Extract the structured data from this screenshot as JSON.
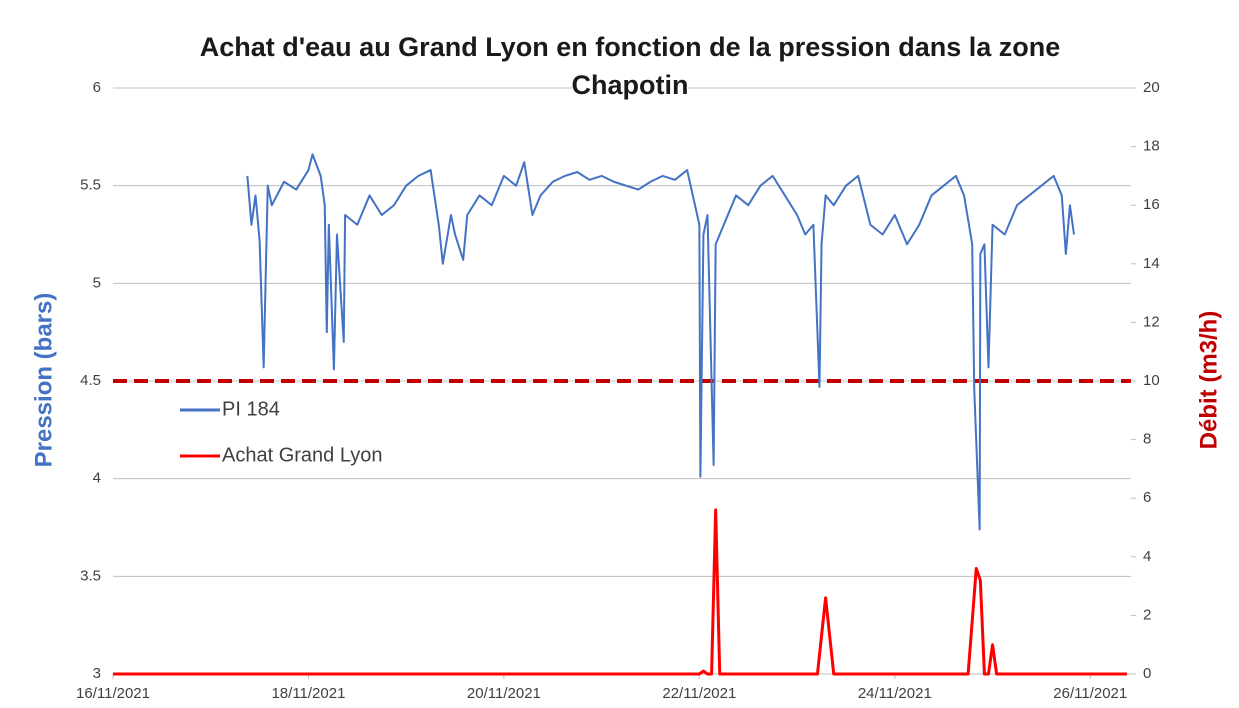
{
  "chart_data": {
    "type": "line",
    "title": "Achat d'eau au Grand Lyon en fonction de la pression dans la zone Chapotin",
    "y_label": "Pression (bars)",
    "y2_label": "Débit (m3/h)",
    "y_label_color": "#4472c4",
    "y2_label_color": "#c00000",
    "xlim": [
      "2021-11-16T00:00",
      "2021-11-26T10:00"
    ],
    "xticks": [
      {
        "value": "2021-11-16T00:00",
        "label": "16/11/2021"
      },
      {
        "value": "2021-11-18T00:00",
        "label": "18/11/2021"
      },
      {
        "value": "2021-11-20T00:00",
        "label": "20/11/2021"
      },
      {
        "value": "2021-11-22T00:00",
        "label": "22/11/2021"
      },
      {
        "value": "2021-11-24T00:00",
        "label": "24/11/2021"
      },
      {
        "value": "2021-11-26T00:00",
        "label": "26/11/2021"
      }
    ],
    "ylim": [
      3,
      6
    ],
    "yticks": [
      3,
      3.5,
      4,
      4.5,
      5,
      5.5,
      6
    ],
    "y2lim": [
      0,
      20
    ],
    "y2ticks": [
      0,
      2,
      4,
      6,
      8,
      10,
      12,
      14,
      16,
      18,
      20
    ],
    "grid": true,
    "legend": "left",
    "reference_line": {
      "value": 10,
      "axis": "y2",
      "color": "#c00000",
      "style": "dashed"
    },
    "series": [
      {
        "name": "PI 184",
        "color": "#4472c4",
        "axis": "y",
        "x": [
          "2021-11-17T09:00",
          "2021-11-17T10:00",
          "2021-11-17T11:00",
          "2021-11-17T12:00",
          "2021-11-17T13:00",
          "2021-11-17T14:00",
          "2021-11-17T15:00",
          "2021-11-17T18:00",
          "2021-11-17T21:00",
          "2021-11-18T00:00",
          "2021-11-18T01:00",
          "2021-11-18T03:00",
          "2021-11-18T04:00",
          "2021-11-18T04:30",
          "2021-11-18T05:00",
          "2021-11-18T06:15",
          "2021-11-18T07:00",
          "2021-11-18T08:40",
          "2021-11-18T09:00",
          "2021-11-18T12:00",
          "2021-11-18T15:00",
          "2021-11-18T18:00",
          "2021-11-18T21:00",
          "2021-11-19T00:00",
          "2021-11-19T03:00",
          "2021-11-19T06:00",
          "2021-11-19T08:00",
          "2021-11-19T09:00",
          "2021-11-19T11:00",
          "2021-11-19T12:00",
          "2021-11-19T14:00",
          "2021-11-19T15:00",
          "2021-11-19T18:00",
          "2021-11-19T21:00",
          "2021-11-20T00:00",
          "2021-11-20T03:00",
          "2021-11-20T05:00",
          "2021-11-20T07:00",
          "2021-11-20T09:00",
          "2021-11-20T12:00",
          "2021-11-20T15:00",
          "2021-11-20T18:00",
          "2021-11-20T21:00",
          "2021-11-21T00:00",
          "2021-11-21T03:00",
          "2021-11-21T06:00",
          "2021-11-21T09:00",
          "2021-11-21T12:00",
          "2021-11-21T15:00",
          "2021-11-21T18:00",
          "2021-11-21T21:00",
          "2021-11-22T00:00",
          "2021-11-22T00:15",
          "2021-11-22T01:00",
          "2021-11-22T02:00",
          "2021-11-22T03:30",
          "2021-11-22T04:00",
          "2021-11-22T06:00",
          "2021-11-22T09:00",
          "2021-11-22T12:00",
          "2021-11-22T15:00",
          "2021-11-22T18:00",
          "2021-11-22T21:00",
          "2021-11-23T00:00",
          "2021-11-23T02:00",
          "2021-11-23T04:00",
          "2021-11-23T05:30",
          "2021-11-23T06:00",
          "2021-11-23T07:00",
          "2021-11-23T09:00",
          "2021-11-23T12:00",
          "2021-11-23T15:00",
          "2021-11-23T18:00",
          "2021-11-23T21:00",
          "2021-11-24T00:00",
          "2021-11-24T03:00",
          "2021-11-24T06:00",
          "2021-11-24T09:00",
          "2021-11-24T12:00",
          "2021-11-24T15:00",
          "2021-11-24T17:00",
          "2021-11-24T19:00",
          "2021-11-24T19:30",
          "2021-11-24T20:50",
          "2021-11-24T21:00",
          "2021-11-24T22:00",
          "2021-11-24T23:00",
          "2021-11-25T00:00",
          "2021-11-25T03:00",
          "2021-11-25T06:00",
          "2021-11-25T09:00",
          "2021-11-25T12:00",
          "2021-11-25T15:00",
          "2021-11-25T17:00",
          "2021-11-25T18:00",
          "2021-11-25T19:00",
          "2021-11-25T20:00"
        ],
        "values": [
          5.55,
          5.3,
          5.45,
          5.22,
          4.57,
          5.5,
          5.4,
          5.52,
          5.48,
          5.58,
          5.66,
          5.55,
          5.4,
          4.75,
          5.3,
          4.56,
          5.25,
          4.7,
          5.35,
          5.3,
          5.45,
          5.35,
          5.4,
          5.5,
          5.55,
          5.58,
          5.3,
          5.1,
          5.35,
          5.25,
          5.12,
          5.35,
          5.45,
          5.4,
          5.55,
          5.5,
          5.62,
          5.35,
          5.45,
          5.52,
          5.55,
          5.57,
          5.53,
          5.55,
          5.52,
          5.5,
          5.48,
          5.52,
          5.55,
          5.53,
          5.58,
          5.3,
          4.01,
          5.25,
          5.35,
          4.07,
          5.2,
          5.3,
          5.45,
          5.4,
          5.5,
          5.55,
          5.45,
          5.35,
          5.25,
          5.3,
          4.47,
          5.2,
          5.45,
          5.4,
          5.5,
          5.55,
          5.3,
          5.25,
          5.35,
          5.2,
          5.3,
          5.45,
          5.5,
          5.55,
          5.45,
          5.2,
          4.46,
          3.74,
          5.15,
          5.2,
          4.57,
          5.3,
          5.25,
          5.4,
          5.45,
          5.5,
          5.55,
          5.45,
          5.15,
          5.4,
          5.25
        ]
      },
      {
        "name": "Achat Grand Lyon",
        "color": "#ff0000",
        "axis": "y2",
        "x": [
          "2021-11-16T00:00",
          "2021-11-22T00:00",
          "2021-11-22T01:00",
          "2021-11-22T02:00",
          "2021-11-22T03:00",
          "2021-11-22T04:00",
          "2021-11-22T05:00",
          "2021-11-23T05:00",
          "2021-11-23T07:00",
          "2021-11-23T09:00",
          "2021-11-24T18:00",
          "2021-11-24T20:00",
          "2021-11-24T21:00",
          "2021-11-24T22:00",
          "2021-11-24T23:00",
          "2021-11-25T00:00",
          "2021-11-25T01:00",
          "2021-11-26T09:00"
        ],
        "values": [
          0,
          0,
          0.1,
          0,
          0,
          5.6,
          0,
          0,
          2.6,
          0,
          0,
          3.6,
          3.2,
          0,
          0,
          1.0,
          0,
          0
        ]
      }
    ]
  }
}
